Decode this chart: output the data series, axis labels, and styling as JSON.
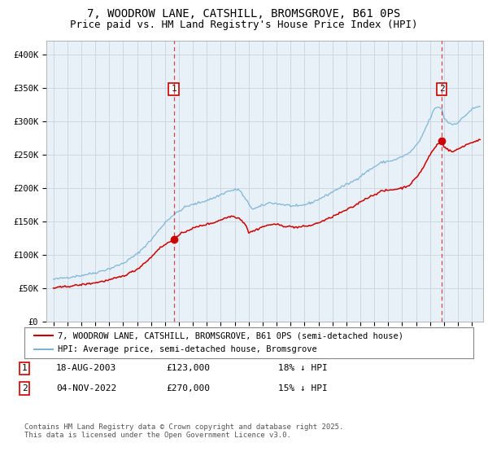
{
  "title1": "7, WOODROW LANE, CATSHILL, BROMSGROVE, B61 0PS",
  "title2": "Price paid vs. HM Land Registry's House Price Index (HPI)",
  "bg_color": "#e8f0f8",
  "fig_color": "#ffffff",
  "grid_color": "#c8d4e0",
  "hpi_color": "#7ab4d8",
  "price_color": "#cc0000",
  "marker_color": "#cc0000",
  "vline_color": "#cc0000",
  "sale1_date_num": 2003.63,
  "sale1_price": 123000,
  "sale2_date_num": 2022.84,
  "sale2_price": 270000,
  "ylim_min": 0,
  "ylim_max": 420000,
  "yticks": [
    0,
    50000,
    100000,
    150000,
    200000,
    250000,
    300000,
    350000,
    400000
  ],
  "ytick_labels": [
    "£0",
    "£50K",
    "£100K",
    "£150K",
    "£200K",
    "£250K",
    "£300K",
    "£350K",
    "£400K"
  ],
  "xlim_min": 1994.5,
  "xlim_max": 2025.8,
  "xtick_years": [
    1995,
    1996,
    1997,
    1998,
    1999,
    2000,
    2001,
    2002,
    2003,
    2004,
    2005,
    2006,
    2007,
    2008,
    2009,
    2010,
    2011,
    2012,
    2013,
    2014,
    2015,
    2016,
    2017,
    2018,
    2019,
    2020,
    2021,
    2022,
    2023,
    2024,
    2025
  ],
  "legend_label_red": "7, WOODROW LANE, CATSHILL, BROMSGROVE, B61 0PS (semi-detached house)",
  "legend_label_blue": "HPI: Average price, semi-detached house, Bromsgrove",
  "annotation1_label": "1",
  "annotation2_label": "2",
  "table_row1": [
    "1",
    "18-AUG-2003",
    "£123,000",
    "18% ↓ HPI"
  ],
  "table_row2": [
    "2",
    "04-NOV-2022",
    "£270,000",
    "15% ↓ HPI"
  ],
  "footer": "Contains HM Land Registry data © Crown copyright and database right 2025.\nThis data is licensed under the Open Government Licence v3.0.",
  "title_fontsize": 10,
  "axis_fontsize": 7.5,
  "legend_fontsize": 7.5
}
